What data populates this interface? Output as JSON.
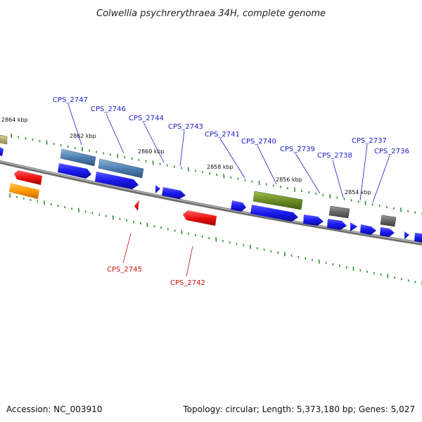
{
  "title": "Colwellia psychrerythraea 34H, complete genome",
  "footer": {
    "accession": "Accession: NC_003910",
    "summary": "Topology: circular; Length: 5,373,180 bp; Genes: 5,027"
  },
  "ticks": [
    "2864 kbp",
    "2862 kbp",
    "2860 kbp",
    "2858 kbp",
    "2856 kbp",
    "2854 kbp"
  ],
  "labels": {
    "blue": [
      "CPS_2747",
      "CPS_2746",
      "CPS_2744",
      "CPS_2743",
      "CPS_2741",
      "CPS_2740",
      "CPS_2739",
      "CPS_2738",
      "CPS_2737",
      "CPS_2736"
    ],
    "red": [
      "CPS_2745",
      "CPS_2742"
    ]
  },
  "colors": {
    "backbone": "#888888",
    "tick": "#2e8b2e",
    "cds_blue": "#1a1aee",
    "cds_steel": "#4f7fb0",
    "cds_red": "#ee1111",
    "cds_orange": "#ff9900",
    "cds_olive": "#6b8e23",
    "cds_gray": "#666666",
    "cds_khaki": "#b8b070",
    "label_blue": "#1a1acc",
    "label_red": "#cc1111"
  }
}
